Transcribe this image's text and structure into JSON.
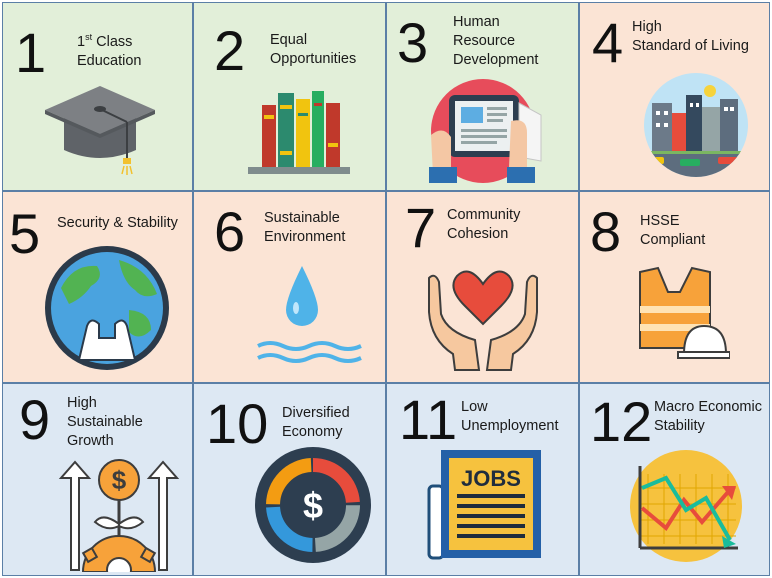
{
  "tiles": [
    {
      "number": "1",
      "label_pre": "1",
      "label_sup": "st",
      "label_post": " Class",
      "label_line2": "Education",
      "icon": "graduation-cap-icon"
    },
    {
      "number": "2",
      "label_line1": "Equal",
      "label_line2": "Opportunities",
      "icon": "books-icon"
    },
    {
      "number": "3",
      "label_line1": "Human",
      "label_line2": "Resource",
      "label_line3": "Development",
      "icon": "tablet-reading-icon"
    },
    {
      "number": "4",
      "label_line1": "High",
      "label_line2": "Standard of Living",
      "icon": "city-icon"
    },
    {
      "number": "5",
      "label_line1": "Security & Stability",
      "icon": "globe-hands-icon"
    },
    {
      "number": "6",
      "label_line1": "Sustainable",
      "label_line2": "Environment",
      "icon": "water-drop-icon"
    },
    {
      "number": "7",
      "label_line1": "Community",
      "label_line2": "Cohesion",
      "icon": "heart-hands-icon"
    },
    {
      "number": "8",
      "label_line1": "HSSE",
      "label_line2": "Compliant",
      "icon": "safety-vest-helmet-icon"
    },
    {
      "number": "9",
      "label_line1": "High",
      "label_line2": "Sustainable",
      "label_line3": "Growth",
      "icon": "growth-gear-icon"
    },
    {
      "number": "10",
      "label_line1": "Diversified",
      "label_line2": "Economy",
      "icon": "dollar-donut-icon"
    },
    {
      "number": "11",
      "label_line1": "Low",
      "label_line2": "Unemployment",
      "icon": "jobs-newspaper-icon"
    },
    {
      "number": "12",
      "label_line1": "Macro Economic",
      "label_line2": "Stability",
      "icon": "chart-trend-icon"
    }
  ],
  "icon_text": {
    "jobs": "JOBS",
    "dollar": "$"
  },
  "colors": {
    "green": "#e2efd9",
    "peach": "#fbe4d5",
    "blue": "#dde8f3",
    "border": "#5b7fa6"
  }
}
